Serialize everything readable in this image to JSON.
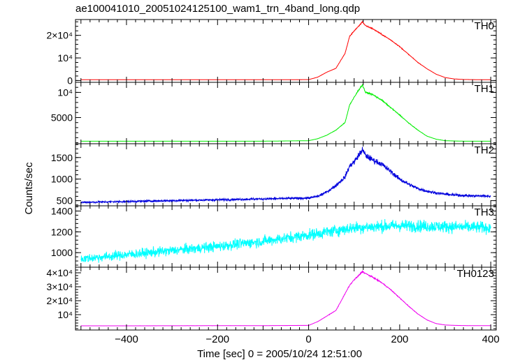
{
  "title": "ae100041010_20051024125100_wam1_trn_4band_long.qdp",
  "ylabel": "Counts/sec",
  "xlabel": "Time [sec] 0 = 2005/10/24 12:51:00",
  "chart_data": [
    {
      "type": "line",
      "name": "TH0",
      "color": "#ff0000",
      "xlim": [
        -512,
        412
      ],
      "ylim": [
        -800,
        27000
      ],
      "x": [
        -500,
        -400,
        -300,
        -200,
        -100,
        0,
        20,
        40,
        60,
        80,
        90,
        100,
        110,
        118,
        125,
        140,
        160,
        180,
        200,
        220,
        240,
        260,
        280,
        300,
        320,
        340,
        360,
        380,
        400
      ],
      "y": [
        350,
        350,
        350,
        350,
        350,
        400,
        1500,
        3700,
        5400,
        12000,
        19500,
        22000,
        24000,
        26000,
        24300,
        23000,
        20500,
        18000,
        15000,
        11500,
        8000,
        5200,
        2800,
        1300,
        700,
        450,
        400,
        350,
        350
      ],
      "yticks": [
        {
          "v": 0,
          "label": "0"
        },
        {
          "v": 10000,
          "label": "10⁴"
        },
        {
          "v": 20000,
          "label": "2×10⁴"
        }
      ],
      "noise": 0.01
    },
    {
      "type": "line",
      "name": "TH1",
      "color": "#00ee00",
      "xlim": [
        -512,
        412
      ],
      "ylim": [
        -200,
        12000
      ],
      "x": [
        -500,
        -400,
        -300,
        -200,
        -100,
        0,
        20,
        40,
        60,
        80,
        90,
        100,
        110,
        118,
        125,
        140,
        160,
        180,
        200,
        220,
        240,
        260,
        280,
        300,
        320,
        340,
        360,
        380,
        400
      ],
      "y": [
        300,
        300,
        300,
        300,
        300,
        400,
        800,
        1500,
        2500,
        4000,
        7500,
        9000,
        10500,
        11500,
        10000,
        9600,
        8500,
        7000,
        5500,
        3900,
        2500,
        1300,
        700,
        400,
        350,
        300,
        300,
        300,
        300
      ],
      "yticks": [
        {
          "v": 5000,
          "label": "5000"
        },
        {
          "v": 10000,
          "label": "10⁴"
        }
      ],
      "noise": 0.015
    },
    {
      "type": "line",
      "name": "TH2",
      "color": "#0000dd",
      "xlim": [
        -512,
        412
      ],
      "ylim": [
        380,
        1820
      ],
      "x": [
        -500,
        -400,
        -300,
        -200,
        -100,
        0,
        20,
        40,
        60,
        80,
        90,
        100,
        110,
        118,
        125,
        140,
        160,
        180,
        200,
        220,
        240,
        260,
        280,
        300,
        320,
        340,
        360,
        380,
        400
      ],
      "y": [
        460,
        480,
        500,
        520,
        540,
        560,
        600,
        700,
        850,
        1050,
        1300,
        1400,
        1550,
        1680,
        1550,
        1450,
        1350,
        1180,
        1000,
        880,
        780,
        720,
        680,
        650,
        630,
        620,
        610,
        610,
        600
      ],
      "yticks": [
        {
          "v": 500,
          "label": "500"
        },
        {
          "v": 1000,
          "label": "1000"
        },
        {
          "v": 1500,
          "label": "1500"
        }
      ],
      "noise": 0.045
    },
    {
      "type": "line",
      "name": "TH3",
      "color": "#00ffff",
      "xlim": [
        -512,
        412
      ],
      "ylim": [
        860,
        1450
      ],
      "x": [
        -500,
        -400,
        -300,
        -200,
        -100,
        0,
        100,
        200,
        300,
        400
      ],
      "y": [
        940,
        980,
        1020,
        1060,
        1110,
        1170,
        1240,
        1260,
        1250,
        1240
      ],
      "yticks": [
        {
          "v": 1000,
          "label": "1000"
        },
        {
          "v": 1200,
          "label": "1200"
        },
        {
          "v": 1400,
          "label": "1400"
        }
      ],
      "noise": 0.045
    },
    {
      "type": "line",
      "name": "TH0123",
      "color": "#ee00ee",
      "xlim": [
        -512,
        412
      ],
      "ylim": [
        -1000,
        44000
      ],
      "x": [
        -500,
        -400,
        -300,
        -200,
        -100,
        0,
        20,
        40,
        60,
        80,
        90,
        100,
        110,
        118,
        125,
        140,
        160,
        180,
        200,
        220,
        240,
        260,
        280,
        300,
        320,
        340,
        360,
        380,
        400
      ],
      "y": [
        2000,
        2000,
        2050,
        2100,
        2150,
        2300,
        5000,
        9000,
        13000,
        25000,
        31000,
        35000,
        38000,
        41000,
        39500,
        37000,
        33000,
        28000,
        22000,
        16000,
        10500,
        6200,
        3600,
        2600,
        2300,
        2200,
        2150,
        2100,
        2100
      ],
      "yticks": [
        {
          "v": 10000,
          "label": "10⁴"
        },
        {
          "v": 20000,
          "label": "2×10⁴"
        },
        {
          "v": 30000,
          "label": "3×10⁴"
        },
        {
          "v": 40000,
          "label": "4×10⁴"
        }
      ],
      "noise": 0.012
    }
  ],
  "xticks": [
    {
      "v": -400,
      "label": "−400"
    },
    {
      "v": -200,
      "label": "−200"
    },
    {
      "v": 0,
      "label": "0"
    },
    {
      "v": 200,
      "label": "200"
    },
    {
      "v": 400,
      "label": "400"
    }
  ]
}
